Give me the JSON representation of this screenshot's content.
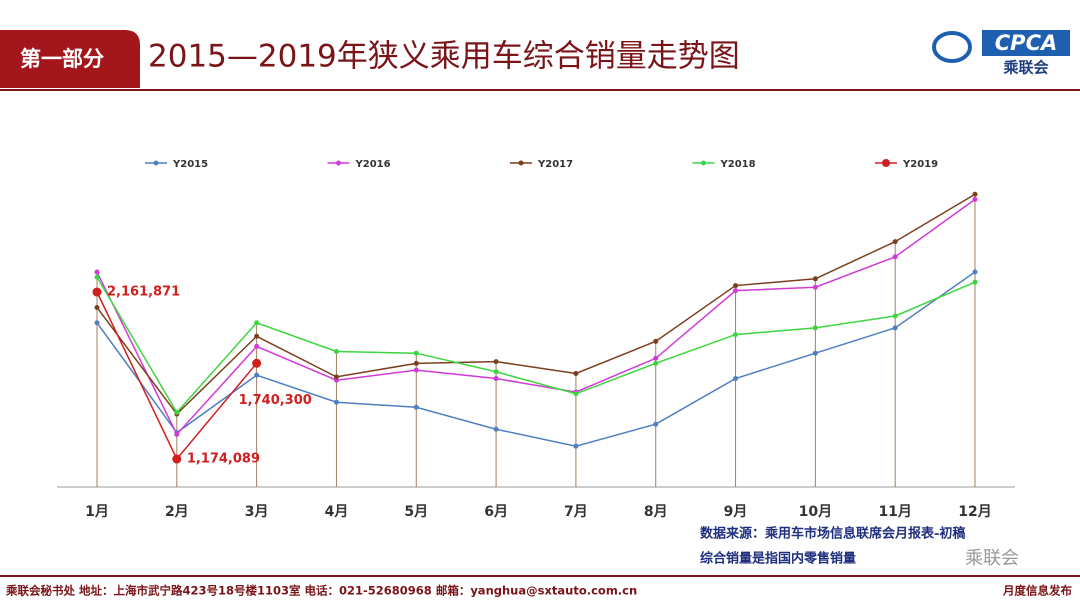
{
  "header": {
    "section": "第一部分",
    "logo_text": "CPCA",
    "logo_subtext": "乘联会"
  },
  "chart_data": {
    "type": "line",
    "title": "2015—2019年狭义乘用车综合销量走势图",
    "categories": [
      "1月",
      "2月",
      "3月",
      "4月",
      "5月",
      "6月",
      "7月",
      "8月",
      "9月",
      "10月",
      "11月",
      "12月"
    ],
    "ylim": [
      1000000,
      3200000
    ],
    "legend": "top",
    "series": [
      {
        "name": "Y2015",
        "color": "#4f7fc1",
        "values": [
          1980000,
          1330000,
          1670000,
          1510000,
          1480000,
          1350000,
          1250000,
          1380000,
          1650000,
          1800000,
          1950000,
          2280000
        ]
      },
      {
        "name": "Y2016",
        "color": "#d23ad8",
        "values": [
          2280000,
          1320000,
          1840000,
          1640000,
          1700000,
          1650000,
          1570000,
          1770000,
          2170000,
          2190000,
          2370000,
          2710000
        ]
      },
      {
        "name": "Y2017",
        "color": "#7b3f1e",
        "values": [
          2070000,
          1440000,
          1900000,
          1660000,
          1740000,
          1750000,
          1680000,
          1870000,
          2200000,
          2240000,
          2460000,
          2740000
        ]
      },
      {
        "name": "Y2018",
        "color": "#3ed63e",
        "values": [
          2250000,
          1450000,
          1980000,
          1810000,
          1800000,
          1690000,
          1560000,
          1740000,
          1910000,
          1950000,
          2020000,
          2220000
        ]
      },
      {
        "name": "Y2019",
        "color": "#d01f1f",
        "values": [
          2161871,
          1174089,
          1740300,
          null,
          null,
          null,
          null,
          null,
          null,
          null,
          null,
          null
        ],
        "value_labels": [
          "2,161,871",
          "1,174,089",
          "1,740,300",
          null,
          null,
          null,
          null,
          null,
          null,
          null,
          null,
          null
        ]
      }
    ],
    "source": [
      "数据来源：乘用车市场信息联席会月报表-初稿",
      "综合销量是指国内零售销量"
    ]
  },
  "footer": {
    "contact": "乘联会秘书处   地址：上海市武宁路423号18号楼1103室  电话：021-52680968   邮箱：yanghua@sxtauto.com.cn",
    "right": "月度信息发布",
    "watermark": "乘联会"
  }
}
